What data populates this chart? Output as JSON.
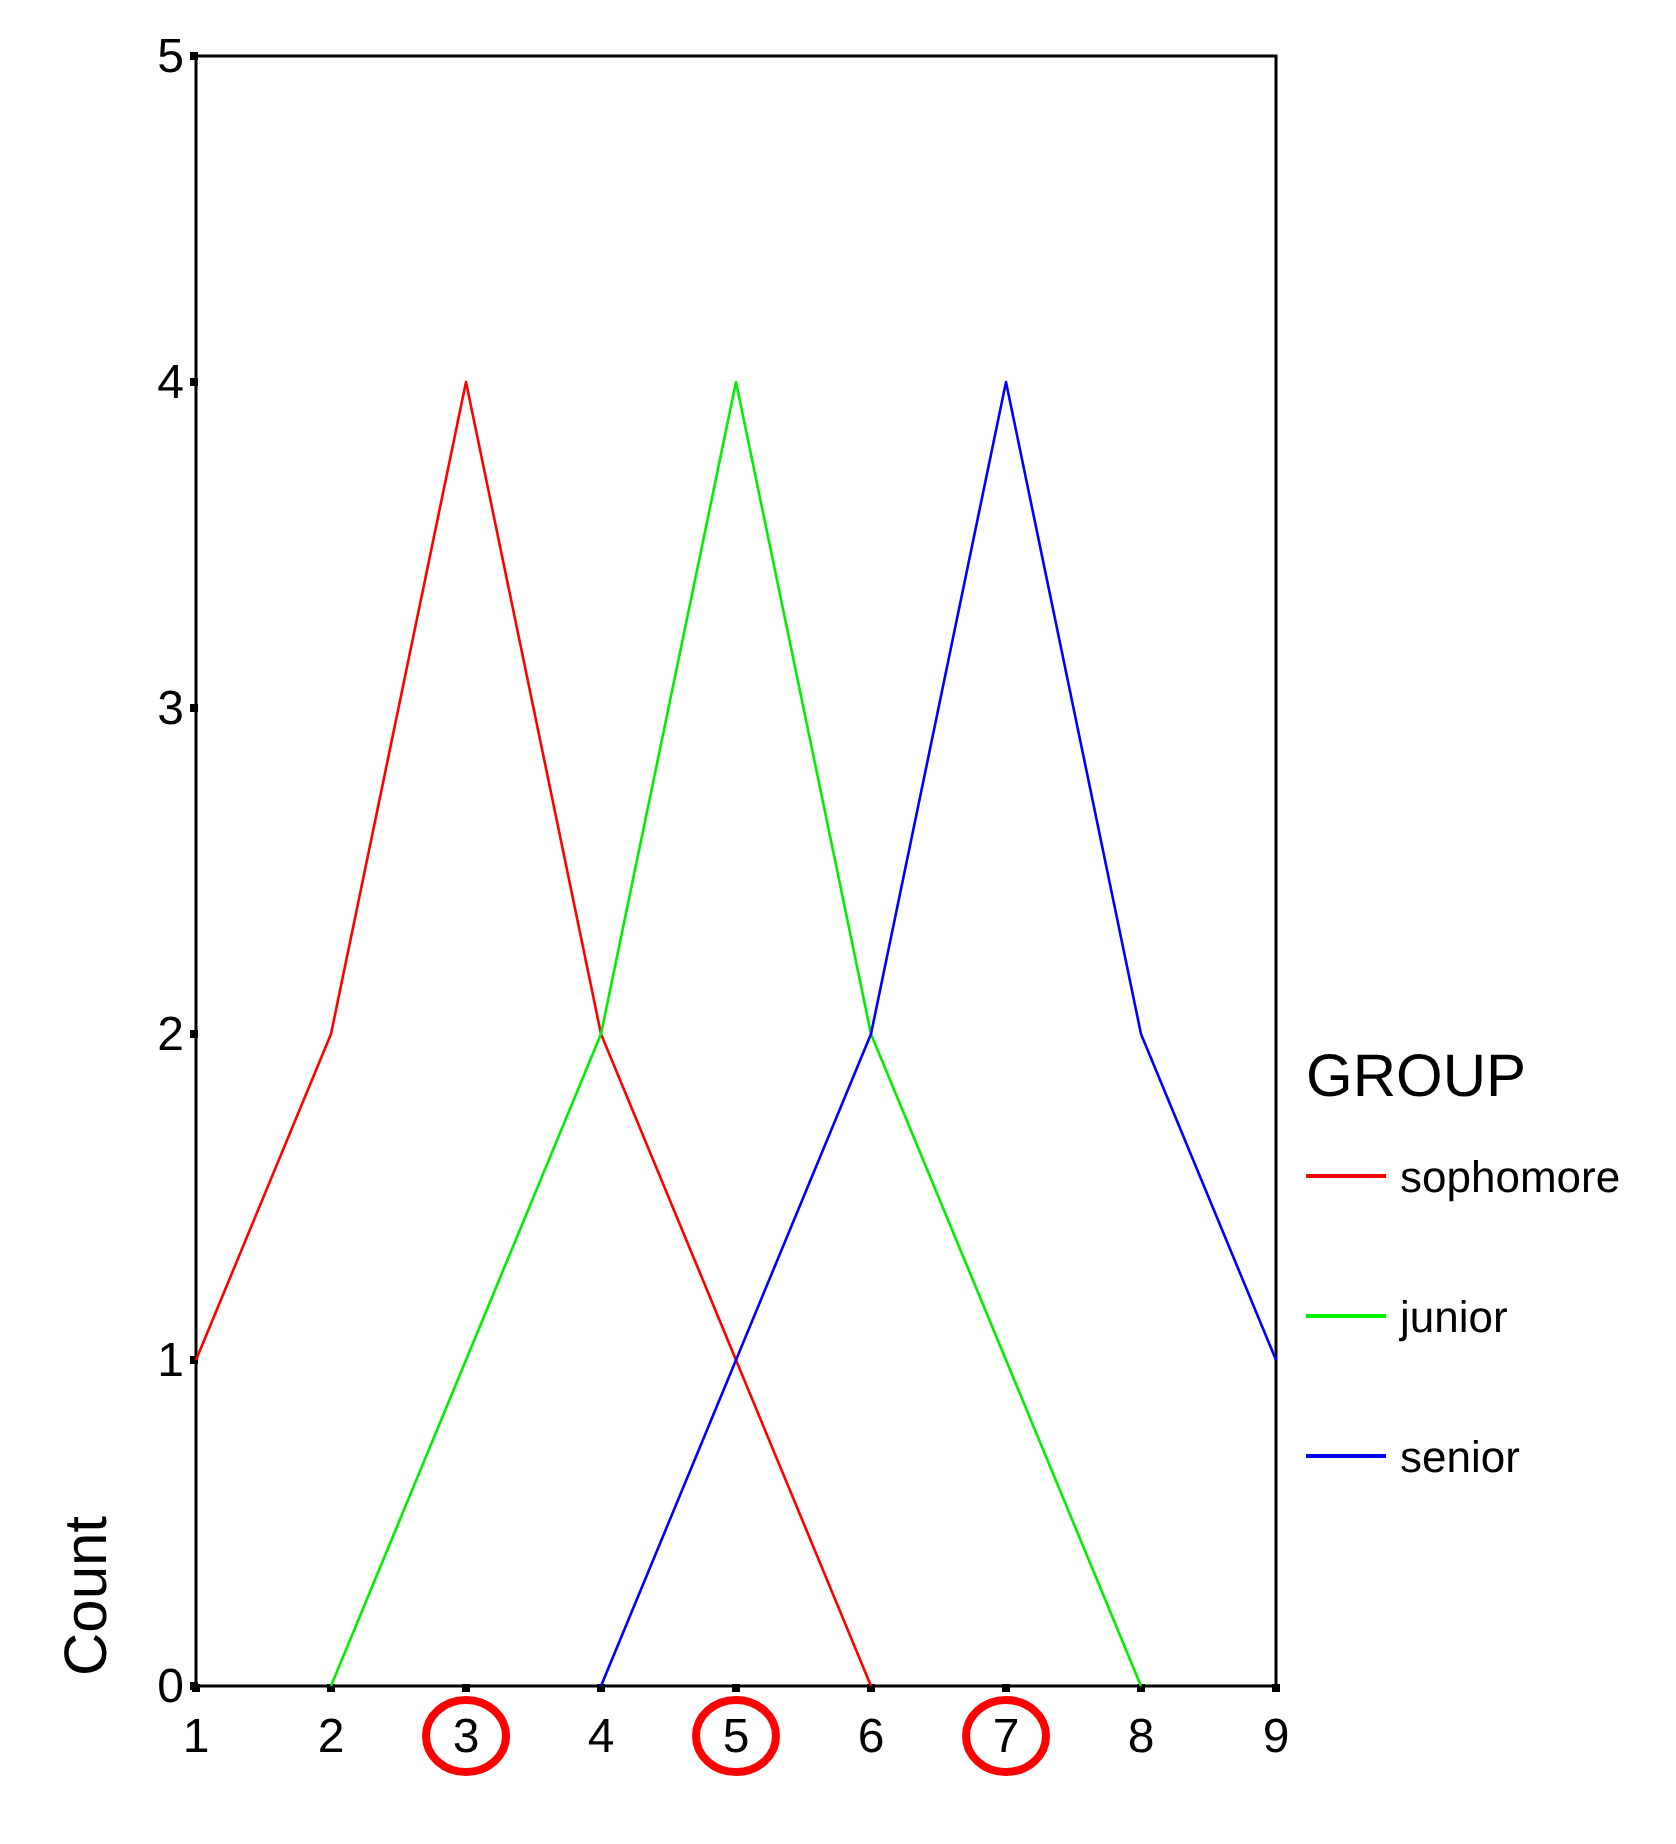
{
  "chart_data": {
    "type": "line",
    "ylabel": "Count",
    "legend_title": "GROUP",
    "legend": "right",
    "x": [
      1,
      2,
      3,
      4,
      5,
      6,
      7,
      8,
      9
    ],
    "xlim": [
      1,
      9
    ],
    "xticks": [
      1,
      2,
      3,
      4,
      5,
      6,
      7,
      8,
      9
    ],
    "ylim": [
      0,
      5
    ],
    "yticks": [
      0,
      1,
      2,
      3,
      4,
      5
    ],
    "grid": false,
    "marker": "none",
    "line_style": "solid",
    "series": [
      {
        "name": "sophomore",
        "color": "#ff0000",
        "values": [
          1,
          2,
          4,
          2,
          1,
          0,
          null,
          null,
          null
        ]
      },
      {
        "name": "junior",
        "color": "#00ee00",
        "values": [
          null,
          0,
          1,
          2,
          4,
          2,
          1,
          0,
          null
        ]
      },
      {
        "name": "senior",
        "color": "#0000ff",
        "values": [
          null,
          null,
          null,
          0,
          1,
          2,
          4,
          2,
          1
        ]
      }
    ]
  }
}
